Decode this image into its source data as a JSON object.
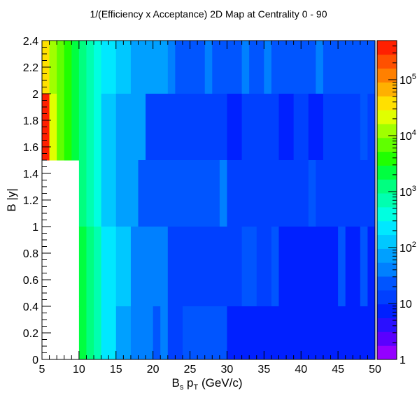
{
  "chart_data": {
    "type": "heatmap",
    "title": "1/(Efficiency x Acceptance) 2D Map at Centrality 0 - 90",
    "xlabel_main": "B",
    "xlabel_sub": "s",
    "xlabel_mid": " p",
    "xlabel_sub2": "T",
    "xlabel_tail": " (GeV/c)",
    "ylabel": "B |y|",
    "xlim": [
      5,
      50
    ],
    "ylim": [
      0,
      2.4
    ],
    "x_ticks": [
      "5",
      "10",
      "15",
      "20",
      "25",
      "30",
      "35",
      "40",
      "45",
      "50"
    ],
    "y_ticks": [
      "0",
      "0.2",
      "0.4",
      "0.6",
      "0.8",
      "1",
      "1.2",
      "1.4",
      "1.6",
      "1.8",
      "2",
      "2.2",
      "2.4"
    ],
    "z_scale": "log",
    "z_range": [
      1,
      500000
    ],
    "z_ticks": [
      {
        "base": "1",
        "exp": "",
        "value": 1
      },
      {
        "base": "10",
        "exp": "",
        "value": 10
      },
      {
        "base": "10",
        "exp": "2",
        "value": 100
      },
      {
        "base": "10",
        "exp": "3",
        "value": 1000
      },
      {
        "base": "10",
        "exp": "4",
        "value": 10000
      },
      {
        "base": "10",
        "exp": "5",
        "value": 100000
      }
    ],
    "palette": [
      "#9400ff",
      "#5a00ff",
      "#2a10ff",
      "#0020ff",
      "#0040ff",
      "#0055ff",
      "#0080ff",
      "#00a0ff",
      "#00c8ff",
      "#00e8ff",
      "#00ffe0",
      "#00ffb0",
      "#00ff80",
      "#00ff40",
      "#20ff00",
      "#60ff00",
      "#a0ff00",
      "#e0ff00",
      "#ffe000",
      "#ffb000",
      "#ff8000",
      "#ff5000",
      "#ff2000"
    ],
    "rows": [
      {
        "y0": 2.0,
        "y1": 2.4,
        "cells": [
          {
            "x0": 5,
            "x1": 6,
            "c": 18
          },
          {
            "x0": 6,
            "x1": 7,
            "c": 16
          },
          {
            "x0": 7,
            "x1": 8,
            "c": 15
          },
          {
            "x0": 8,
            "x1": 9,
            "c": 14
          },
          {
            "x0": 9,
            "x1": 10,
            "c": 13
          },
          {
            "x0": 10,
            "x1": 11,
            "c": 12
          },
          {
            "x0": 11,
            "x1": 12,
            "c": 11
          },
          {
            "x0": 12,
            "x1": 13,
            "c": 10
          },
          {
            "x0": 13,
            "x1": 15,
            "c": 9
          },
          {
            "x0": 15,
            "x1": 17,
            "c": 8
          },
          {
            "x0": 17,
            "x1": 22,
            "c": 7
          },
          {
            "x0": 22,
            "x1": 23,
            "c": 6
          },
          {
            "x0": 23,
            "x1": 27,
            "c": 5
          },
          {
            "x0": 27,
            "x1": 28,
            "c": 6
          },
          {
            "x0": 28,
            "x1": 32,
            "c": 5
          },
          {
            "x0": 32,
            "x1": 33,
            "c": 6
          },
          {
            "x0": 33,
            "x1": 35,
            "c": 5
          },
          {
            "x0": 35,
            "x1": 36,
            "c": 6
          },
          {
            "x0": 36,
            "x1": 42,
            "c": 5
          },
          {
            "x0": 42,
            "x1": 43,
            "c": 6
          },
          {
            "x0": 43,
            "x1": 50,
            "c": 5
          }
        ]
      },
      {
        "y0": 1.5,
        "y1": 2.0,
        "cells": [
          {
            "x0": 5,
            "x1": 6,
            "c": 22
          },
          {
            "x0": 6,
            "x1": 7,
            "c": 17
          },
          {
            "x0": 7,
            "x1": 8,
            "c": 15
          },
          {
            "x0": 8,
            "x1": 9,
            "c": 14
          },
          {
            "x0": 9,
            "x1": 10,
            "c": 13
          },
          {
            "x0": 10,
            "x1": 11,
            "c": 12
          },
          {
            "x0": 11,
            "x1": 12,
            "c": 11
          },
          {
            "x0": 12,
            "x1": 13,
            "c": 10
          },
          {
            "x0": 13,
            "x1": 15,
            "c": 8
          },
          {
            "x0": 15,
            "x1": 19,
            "c": 7
          },
          {
            "x0": 19,
            "x1": 30,
            "c": 4
          },
          {
            "x0": 30,
            "x1": 32,
            "c": 3
          },
          {
            "x0": 32,
            "x1": 37,
            "c": 4
          },
          {
            "x0": 37,
            "x1": 39,
            "c": 3
          },
          {
            "x0": 39,
            "x1": 41,
            "c": 4
          },
          {
            "x0": 41,
            "x1": 43,
            "c": 3
          },
          {
            "x0": 43,
            "x1": 48,
            "c": 4
          },
          {
            "x0": 48,
            "x1": 49,
            "c": 5
          },
          {
            "x0": 49,
            "x1": 50,
            "c": 4
          }
        ]
      },
      {
        "y0": 1.0,
        "y1": 1.5,
        "cells": [
          {
            "x0": 10,
            "x1": 11,
            "c": 12
          },
          {
            "x0": 11,
            "x1": 12,
            "c": 11
          },
          {
            "x0": 12,
            "x1": 13,
            "c": 10
          },
          {
            "x0": 13,
            "x1": 15,
            "c": 8
          },
          {
            "x0": 15,
            "x1": 18,
            "c": 7
          },
          {
            "x0": 18,
            "x1": 29,
            "c": 5
          },
          {
            "x0": 29,
            "x1": 30,
            "c": 6
          },
          {
            "x0": 30,
            "x1": 31,
            "c": 4
          },
          {
            "x0": 31,
            "x1": 41,
            "c": 4
          },
          {
            "x0": 41,
            "x1": 42,
            "c": 5
          },
          {
            "x0": 42,
            "x1": 50,
            "c": 4
          }
        ]
      },
      {
        "y0": 0.4,
        "y1": 1.0,
        "cells": [
          {
            "x0": 10,
            "x1": 11,
            "c": 13
          },
          {
            "x0": 11,
            "x1": 12,
            "c": 12
          },
          {
            "x0": 12,
            "x1": 13,
            "c": 11
          },
          {
            "x0": 13,
            "x1": 15,
            "c": 9
          },
          {
            "x0": 15,
            "x1": 17,
            "c": 8
          },
          {
            "x0": 17,
            "x1": 22,
            "c": 6
          },
          {
            "x0": 22,
            "x1": 30,
            "c": 4
          },
          {
            "x0": 30,
            "x1": 32,
            "c": 4
          },
          {
            "x0": 32,
            "x1": 34,
            "c": 5
          },
          {
            "x0": 34,
            "x1": 36,
            "c": 4
          },
          {
            "x0": 36,
            "x1": 37,
            "c": 5
          },
          {
            "x0": 37,
            "x1": 45,
            "c": 3
          },
          {
            "x0": 45,
            "x1": 46,
            "c": 5
          },
          {
            "x0": 46,
            "x1": 48,
            "c": 3
          },
          {
            "x0": 48,
            "x1": 49,
            "c": 5
          },
          {
            "x0": 49,
            "x1": 50,
            "c": 3
          }
        ]
      },
      {
        "y0": 0.0,
        "y1": 0.4,
        "cells": [
          {
            "x0": 10,
            "x1": 11,
            "c": 13
          },
          {
            "x0": 11,
            "x1": 12,
            "c": 12
          },
          {
            "x0": 12,
            "x1": 13,
            "c": 11
          },
          {
            "x0": 13,
            "x1": 15,
            "c": 9
          },
          {
            "x0": 15,
            "x1": 17,
            "c": 7
          },
          {
            "x0": 17,
            "x1": 20,
            "c": 6
          },
          {
            "x0": 20,
            "x1": 21,
            "c": 5
          },
          {
            "x0": 21,
            "x1": 22,
            "c": 6
          },
          {
            "x0": 22,
            "x1": 24,
            "c": 4
          },
          {
            "x0": 24,
            "x1": 30,
            "c": 5
          },
          {
            "x0": 30,
            "x1": 50,
            "c": 3
          }
        ]
      }
    ]
  }
}
